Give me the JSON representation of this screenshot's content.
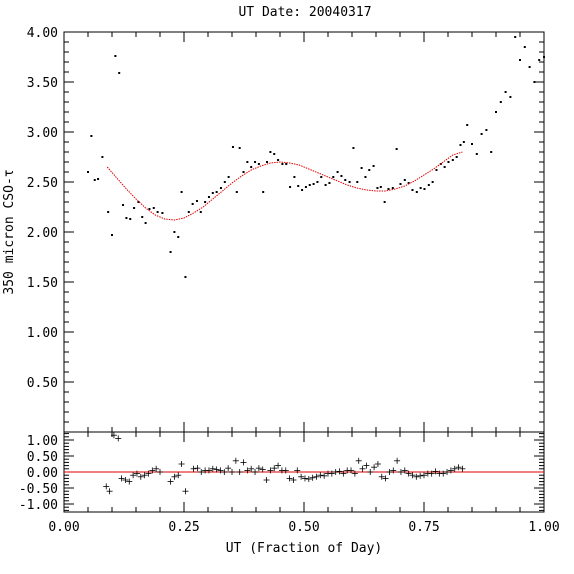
{
  "chart_data": [
    {
      "type": "scatter",
      "title": "UT Date: 20040317",
      "xlabel": "",
      "ylabel": "350 micron CSO-τ",
      "xlim": [
        0,
        1
      ],
      "ylim": [
        0,
        4
      ],
      "yticks": [
        "0.50",
        "1.00",
        "1.50",
        "2.00",
        "2.50",
        "3.00",
        "3.50",
        "4.00"
      ],
      "series": [
        {
          "kind": "points",
          "x": [
            0.05,
            0.057,
            0.064,
            0.071,
            0.08,
            0.092,
            0.1,
            0.107,
            0.115,
            0.123,
            0.13,
            0.138,
            0.146,
            0.155,
            0.163,
            0.17,
            0.178,
            0.187,
            0.195,
            0.205,
            0.222,
            0.23,
            0.238,
            0.245,
            0.253,
            0.26,
            0.268,
            0.277,
            0.285,
            0.294,
            0.302,
            0.31,
            0.318,
            0.327,
            0.335,
            0.343,
            0.352,
            0.36,
            0.366,
            0.374,
            0.382,
            0.39,
            0.398,
            0.406,
            0.415,
            0.423,
            0.43,
            0.438,
            0.446,
            0.455,
            0.463,
            0.471,
            0.48,
            0.488,
            0.496,
            0.504,
            0.512,
            0.52,
            0.528,
            0.536,
            0.545,
            0.553,
            0.561,
            0.57,
            0.578,
            0.586,
            0.595,
            0.603,
            0.611,
            0.62,
            0.628,
            0.636,
            0.645,
            0.653,
            0.66,
            0.668,
            0.676,
            0.685,
            0.693,
            0.701,
            0.71,
            0.718,
            0.726,
            0.735,
            0.743,
            0.751,
            0.76,
            0.768,
            0.776,
            0.785,
            0.793,
            0.801,
            0.81,
            0.818,
            0.826,
            0.833,
            0.84,
            0.85,
            0.86,
            0.87,
            0.88,
            0.89,
            0.9,
            0.91,
            0.92,
            0.93,
            0.94,
            0.95,
            0.96,
            0.97,
            0.98,
            0.99,
            1.0
          ],
          "y": [
            2.6,
            2.96,
            2.52,
            2.53,
            2.75,
            2.2,
            1.97,
            3.76,
            3.59,
            2.27,
            2.14,
            2.13,
            2.24,
            2.3,
            2.15,
            2.09,
            2.23,
            2.24,
            2.2,
            2.19,
            1.8,
            2.0,
            1.95,
            2.4,
            1.55,
            2.2,
            2.28,
            2.31,
            2.2,
            2.3,
            2.35,
            2.39,
            2.4,
            2.44,
            2.5,
            2.55,
            2.85,
            2.4,
            2.84,
            2.6,
            2.7,
            2.65,
            2.7,
            2.68,
            2.4,
            2.7,
            2.8,
            2.78,
            2.72,
            2.68,
            2.68,
            2.45,
            2.55,
            2.46,
            2.42,
            2.45,
            2.47,
            2.48,
            2.5,
            2.55,
            2.47,
            2.49,
            2.55,
            2.6,
            2.56,
            2.52,
            2.5,
            2.84,
            2.5,
            2.64,
            2.55,
            2.62,
            2.66,
            2.44,
            2.45,
            2.3,
            2.43,
            2.44,
            2.83,
            2.48,
            2.52,
            2.49,
            2.42,
            2.4,
            2.44,
            2.43,
            2.47,
            2.5,
            2.62,
            2.68,
            2.65,
            2.7,
            2.72,
            2.75,
            2.87,
            2.9,
            3.07,
            2.88,
            2.78,
            2.98,
            3.02,
            2.8,
            3.2,
            3.3,
            3.4,
            3.35,
            3.95,
            3.72,
            3.85,
            3.65,
            3.5,
            3.72,
            3.75
          ]
        },
        {
          "kind": "fit",
          "x": [
            0.09,
            0.11,
            0.13,
            0.15,
            0.17,
            0.19,
            0.21,
            0.23,
            0.25,
            0.27,
            0.29,
            0.31,
            0.33,
            0.35,
            0.37,
            0.39,
            0.41,
            0.43,
            0.45,
            0.47,
            0.49,
            0.51,
            0.53,
            0.55,
            0.57,
            0.59,
            0.61,
            0.63,
            0.65,
            0.67,
            0.69,
            0.71,
            0.73,
            0.75,
            0.77,
            0.79,
            0.81,
            0.83
          ],
          "y": [
            2.65,
            2.54,
            2.43,
            2.33,
            2.24,
            2.17,
            2.13,
            2.12,
            2.14,
            2.19,
            2.25,
            2.33,
            2.41,
            2.49,
            2.56,
            2.62,
            2.66,
            2.69,
            2.7,
            2.69,
            2.67,
            2.63,
            2.59,
            2.55,
            2.51,
            2.47,
            2.44,
            2.42,
            2.41,
            2.41,
            2.43,
            2.46,
            2.51,
            2.57,
            2.63,
            2.7,
            2.77,
            2.8
          ]
        }
      ]
    },
    {
      "type": "scatter",
      "xlabel": "UT (Fraction of Day)",
      "ylabel": "",
      "xlim": [
        0,
        1
      ],
      "ylim": [
        -1.25,
        1.25
      ],
      "xticks": [
        "0.00",
        "0.25",
        "0.50",
        "0.75",
        "1.00"
      ],
      "yticks": [
        "1.00",
        "0.50",
        "0.00",
        "-0.50",
        "-1.00"
      ],
      "series": [
        {
          "kind": "residuals",
          "x": [
            0.088,
            0.095,
            0.104,
            0.113,
            0.12,
            0.128,
            0.136,
            0.144,
            0.152,
            0.16,
            0.168,
            0.176,
            0.184,
            0.192,
            0.2,
            0.222,
            0.23,
            0.238,
            0.245,
            0.253,
            0.27,
            0.278,
            0.286,
            0.294,
            0.302,
            0.31,
            0.318,
            0.326,
            0.334,
            0.342,
            0.35,
            0.358,
            0.366,
            0.374,
            0.382,
            0.39,
            0.398,
            0.406,
            0.414,
            0.422,
            0.43,
            0.438,
            0.446,
            0.454,
            0.462,
            0.47,
            0.478,
            0.486,
            0.494,
            0.502,
            0.51,
            0.518,
            0.526,
            0.534,
            0.542,
            0.55,
            0.558,
            0.566,
            0.574,
            0.582,
            0.59,
            0.598,
            0.606,
            0.614,
            0.622,
            0.63,
            0.638,
            0.646,
            0.654,
            0.662,
            0.67,
            0.678,
            0.686,
            0.694,
            0.702,
            0.71,
            0.718,
            0.726,
            0.734,
            0.742,
            0.75,
            0.758,
            0.766,
            0.774,
            0.782,
            0.79,
            0.798,
            0.806,
            0.814,
            0.822,
            0.83
          ],
          "y": [
            -0.45,
            -0.6,
            1.15,
            1.05,
            -0.2,
            -0.25,
            -0.3,
            -0.1,
            -0.05,
            -0.15,
            -0.1,
            -0.05,
            0.05,
            0.1,
            0.0,
            -0.3,
            -0.15,
            -0.1,
            0.25,
            -0.6,
            0.1,
            0.12,
            0.0,
            0.05,
            0.05,
            0.1,
            0.08,
            0.05,
            0.0,
            0.12,
            0.0,
            0.35,
            0.0,
            0.3,
            0.05,
            0.1,
            0.0,
            0.12,
            0.08,
            -0.25,
            0.05,
            0.12,
            0.2,
            0.05,
            0.05,
            -0.2,
            -0.25,
            0.05,
            -0.15,
            -0.2,
            -0.22,
            -0.18,
            -0.15,
            -0.1,
            -0.12,
            -0.05,
            -0.05,
            0.0,
            0.02,
            -0.05,
            0.05,
            0.05,
            -0.05,
            0.35,
            0.1,
            0.2,
            0.0,
            0.15,
            0.25,
            -0.15,
            -0.2,
            0.0,
            0.05,
            0.35,
            0.0,
            0.05,
            -0.05,
            -0.1,
            -0.15,
            -0.12,
            -0.1,
            -0.05,
            -0.05,
            0.02,
            -0.05,
            -0.05,
            0.0,
            0.05,
            0.1,
            0.15,
            0.1
          ]
        }
      ]
    }
  ]
}
